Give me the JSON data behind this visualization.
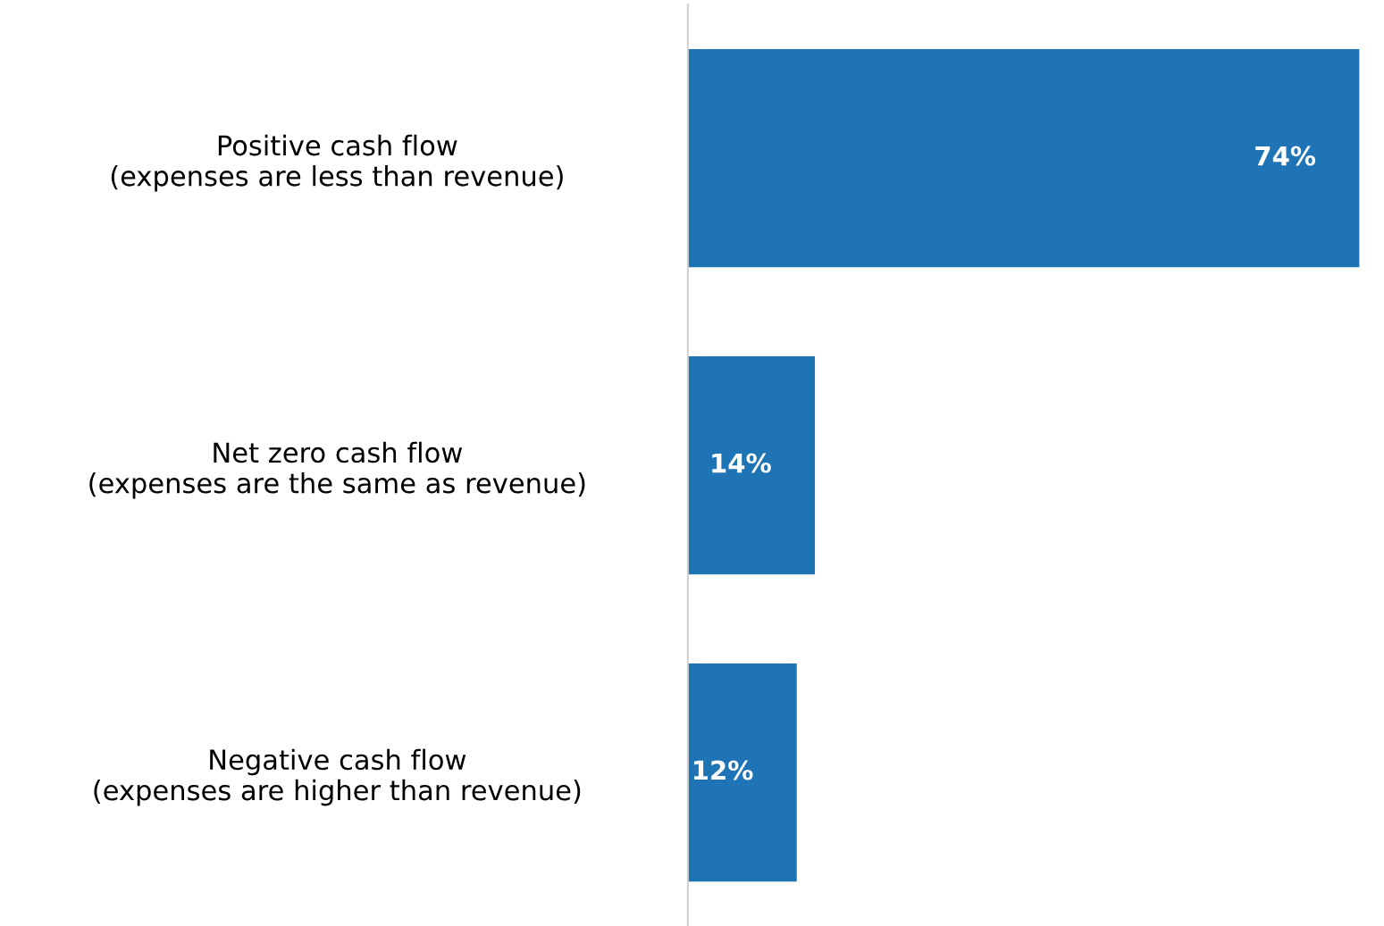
{
  "chart_data": {
    "type": "bar",
    "orientation": "horizontal",
    "categories": [
      "Positive cash flow\n(expenses are less than revenue)",
      "Net zero cash flow\n(expenses are the same as revenue)",
      "Negative cash flow\n(expenses are higher than revenue)"
    ],
    "values": [
      74,
      14,
      12
    ],
    "value_labels": [
      "74%",
      "14%",
      "12%"
    ],
    "color": "#1f74b5",
    "grid": false,
    "legend": false
  }
}
